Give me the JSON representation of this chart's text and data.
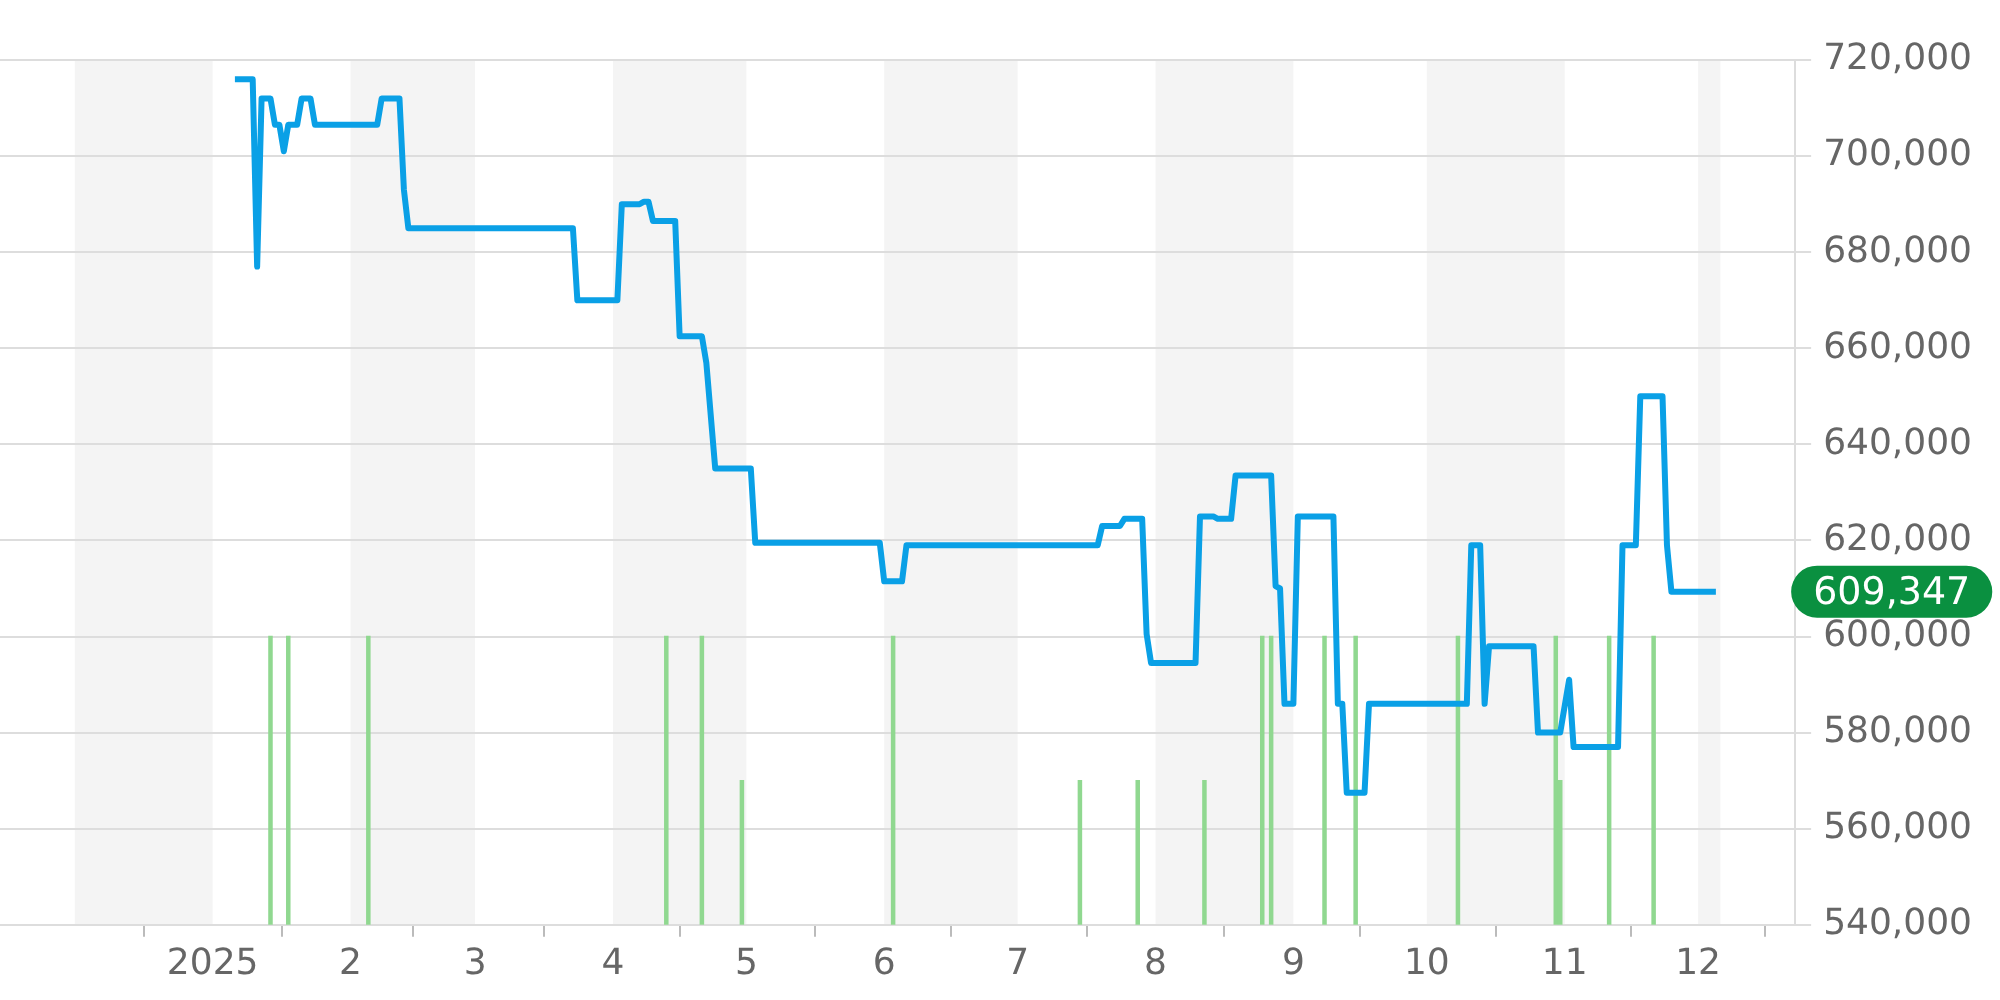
{
  "chart_data": {
    "type": "line",
    "series": [
      {
        "color": "#0aa0e6",
        "x": [
          "2025-01-06",
          "2025-01-10",
          "2025-01-11",
          "2025-01-12",
          "2025-01-14",
          "2025-01-15",
          "2025-01-16",
          "2025-01-17",
          "2025-01-18",
          "2025-01-20",
          "2025-01-21",
          "2025-01-23",
          "2025-01-24",
          "2025-02-07",
          "2025-02-08",
          "2025-02-12",
          "2025-02-13",
          "2025-02-14",
          "2025-03-23",
          "2025-03-24",
          "2025-04-02",
          "2025-04-03",
          "2025-04-07",
          "2025-04-08",
          "2025-04-09",
          "2025-04-10",
          "2025-04-15",
          "2025-04-16",
          "2025-04-21",
          "2025-04-22",
          "2025-04-24",
          "2025-05-02",
          "2025-05-03",
          "2025-05-31",
          "2025-06-01",
          "2025-06-05",
          "2025-06-06",
          "2025-07-19",
          "2025-07-20",
          "2025-07-24",
          "2025-07-25",
          "2025-07-29",
          "2025-07-30",
          "2025-07-31",
          "2025-08-10",
          "2025-08-11",
          "2025-08-14",
          "2025-08-15",
          "2025-08-18",
          "2025-08-19",
          "2025-08-27",
          "2025-08-28",
          "2025-08-29",
          "2025-08-30",
          "2025-09-01",
          "2025-09-02",
          "2025-09-10",
          "2025-09-11",
          "2025-09-12",
          "2025-09-13",
          "2025-09-17",
          "2025-09-18",
          "2025-10-10",
          "2025-10-11",
          "2025-10-13",
          "2025-10-14",
          "2025-10-15",
          "2025-10-25",
          "2025-10-26",
          "2025-10-31",
          "2025-11-02",
          "2025-11-03",
          "2025-11-13",
          "2025-11-14",
          "2025-11-17",
          "2025-11-18",
          "2025-11-23",
          "2025-11-24",
          "2025-11-25",
          "2025-12-05"
        ],
        "values": [
          716000,
          716000,
          677000,
          712000,
          712000,
          706500,
          706500,
          701000,
          706500,
          706500,
          712000,
          712000,
          706500,
          706500,
          712000,
          712000,
          693000,
          685000,
          685000,
          670000,
          670000,
          690000,
          690000,
          690500,
          690500,
          686500,
          686500,
          662500,
          662500,
          657000,
          635000,
          635000,
          619500,
          619500,
          611500,
          611500,
          619000,
          619000,
          623000,
          623000,
          624500,
          624500,
          600500,
          594500,
          594500,
          625000,
          625000,
          624500,
          624500,
          633500,
          633500,
          610500,
          610000,
          586000,
          586000,
          625000,
          625000,
          586000,
          586000,
          567500,
          567500,
          586000,
          586000,
          619000,
          619000,
          586000,
          598000,
          598000,
          580000,
          580000,
          591000,
          577000,
          577000,
          619000,
          619000,
          650000,
          650000,
          619000,
          609347,
          609347
        ]
      },
      {
        "type": "bar",
        "color": "#90d890",
        "x": [
          "2025-01-14",
          "2025-01-18",
          "2025-02-05",
          "2025-04-13",
          "2025-04-21",
          "2025-04-30",
          "2025-06-03",
          "2025-07-15",
          "2025-07-28",
          "2025-08-12",
          "2025-08-25",
          "2025-08-27",
          "2025-09-08",
          "2025-09-15",
          "2025-10-08",
          "2025-10-30",
          "2025-10-31",
          "2025-11-11",
          "2025-11-21"
        ],
        "values": [
          600000,
          600000,
          600000,
          600000,
          600000,
          570000,
          600000,
          570000,
          570000,
          570000,
          600000,
          600000,
          600000,
          600000,
          600000,
          600000,
          570000,
          600000,
          600000
        ]
      }
    ],
    "xlim": [
      "2024-12-01",
      "2025-12-06"
    ],
    "xticks": [
      {
        "value": "2025-01-01",
        "label": "2025"
      },
      {
        "value": "2025-02-01",
        "label": "2"
      },
      {
        "value": "2025-03-01",
        "label": "3"
      },
      {
        "value": "2025-04-01",
        "label": "4"
      },
      {
        "value": "2025-05-01",
        "label": "5"
      },
      {
        "value": "2025-06-01",
        "label": "6"
      },
      {
        "value": "2025-07-01",
        "label": "7"
      },
      {
        "value": "2025-08-01",
        "label": "8"
      },
      {
        "value": "2025-09-01",
        "label": "9"
      },
      {
        "value": "2025-10-01",
        "label": "10"
      },
      {
        "value": "2025-11-01",
        "label": "11"
      },
      {
        "value": "2025-12-01",
        "label": "12"
      }
    ],
    "ylim": [
      540000,
      720000
    ],
    "yticks": [
      {
        "value": 540000,
        "label": "540,000"
      },
      {
        "value": 560000,
        "label": "560,000"
      },
      {
        "value": 580000,
        "label": "580,000"
      },
      {
        "value": 600000,
        "label": "600,000"
      },
      {
        "value": 620000,
        "label": "620,000"
      },
      {
        "value": 640000,
        "label": "640,000"
      },
      {
        "value": 660000,
        "label": "660,000"
      },
      {
        "value": 680000,
        "label": "680,000"
      },
      {
        "value": 700000,
        "label": "700,000"
      },
      {
        "value": 720000,
        "label": "720,000"
      }
    ],
    "bands": [
      {
        "axis": "x",
        "from": "2024-12-01",
        "to": "2025-01-01",
        "color": "#f4f4f4"
      },
      {
        "axis": "x",
        "from": "2025-02-01",
        "to": "2025-03-01",
        "color": "#f4f4f4"
      },
      {
        "axis": "x",
        "from": "2025-04-01",
        "to": "2025-05-01",
        "color": "#f4f4f4"
      },
      {
        "axis": "x",
        "from": "2025-06-01",
        "to": "2025-07-01",
        "color": "#f4f4f4"
      },
      {
        "axis": "x",
        "from": "2025-08-01",
        "to": "2025-09-01",
        "color": "#f4f4f4"
      },
      {
        "axis": "x",
        "from": "2025-10-01",
        "to": "2025-11-01",
        "color": "#f4f4f4"
      },
      {
        "axis": "x",
        "from": "2025-12-01",
        "to": "2025-12-06",
        "color": "#f4f4f4"
      }
    ],
    "annotations": [
      {
        "text": "609,347",
        "x": "2025-12-05",
        "y": 609347
      }
    ],
    "grid": "y",
    "legend": false,
    "marker": "none"
  }
}
